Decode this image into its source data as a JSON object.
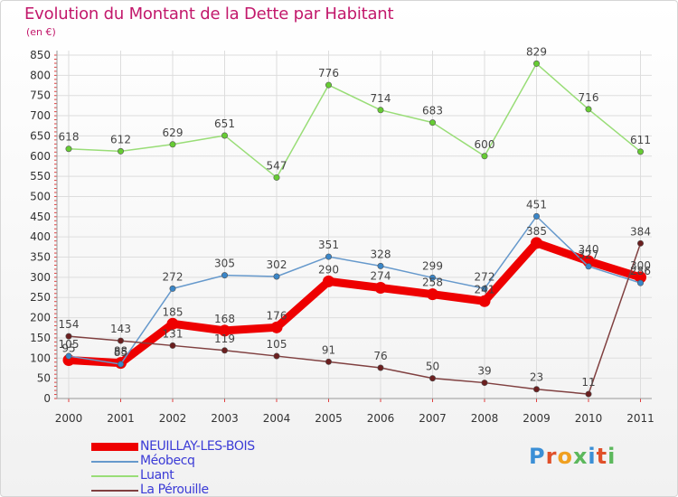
{
  "header": {
    "title": "Evolution du Montant de la Dette par Habitant",
    "unit": "(en €)"
  },
  "logo": {
    "text": "Proxiti"
  },
  "chart_data": {
    "type": "line",
    "categories": [
      "2000",
      "2001",
      "2002",
      "2003",
      "2004",
      "2005",
      "2006",
      "2007",
      "2008",
      "2009",
      "2010",
      "2011"
    ],
    "ylim": [
      0,
      850
    ],
    "yticks": [
      0,
      50,
      100,
      150,
      200,
      250,
      300,
      350,
      400,
      450,
      500,
      550,
      600,
      650,
      700,
      750,
      800,
      850
    ],
    "grid": true,
    "legend_position": "bottom-left",
    "series": [
      {
        "name": "NEUILLAY-LES-BOIS",
        "color": "#ee0000",
        "point_color": "#ee0000",
        "width": 9,
        "values": [
          95,
          88,
          185,
          168,
          176,
          290,
          274,
          258,
          241,
          385,
          340,
          300
        ],
        "labels": [
          "95",
          "88",
          "185",
          "168",
          "176",
          "290",
          "274",
          "258",
          "241",
          "385",
          "340",
          "300"
        ]
      },
      {
        "name": "Méobecq",
        "color": "#6699cc",
        "point_color": "#3a86c8",
        "width": 1.5,
        "values": [
          105,
          85,
          272,
          305,
          302,
          351,
          328,
          299,
          272,
          451,
          327,
          286
        ],
        "labels": [
          "105",
          "85",
          "272",
          "305",
          "302",
          "351",
          "328",
          "299",
          "272",
          "451",
          "327",
          "286"
        ]
      },
      {
        "name": "Luant",
        "color": "#99dd77",
        "point_color": "#66cc33",
        "width": 1.5,
        "values": [
          618,
          612,
          629,
          651,
          547,
          776,
          714,
          683,
          600,
          829,
          716,
          611
        ],
        "labels": [
          "618",
          "612",
          "629",
          "651",
          "547",
          "776",
          "714",
          "683",
          "600",
          "829",
          "716",
          "611"
        ]
      },
      {
        "name": "La Pérouille",
        "color": "#804040",
        "point_color": "#6b1f1f",
        "width": 1.5,
        "values": [
          154,
          143,
          131,
          119,
          105,
          91,
          76,
          50,
          39,
          23,
          11,
          384
        ],
        "labels": [
          "154",
          "143",
          "131",
          "119",
          "105",
          "91",
          "76",
          "50",
          "39",
          "23",
          "11",
          "384"
        ]
      }
    ]
  }
}
